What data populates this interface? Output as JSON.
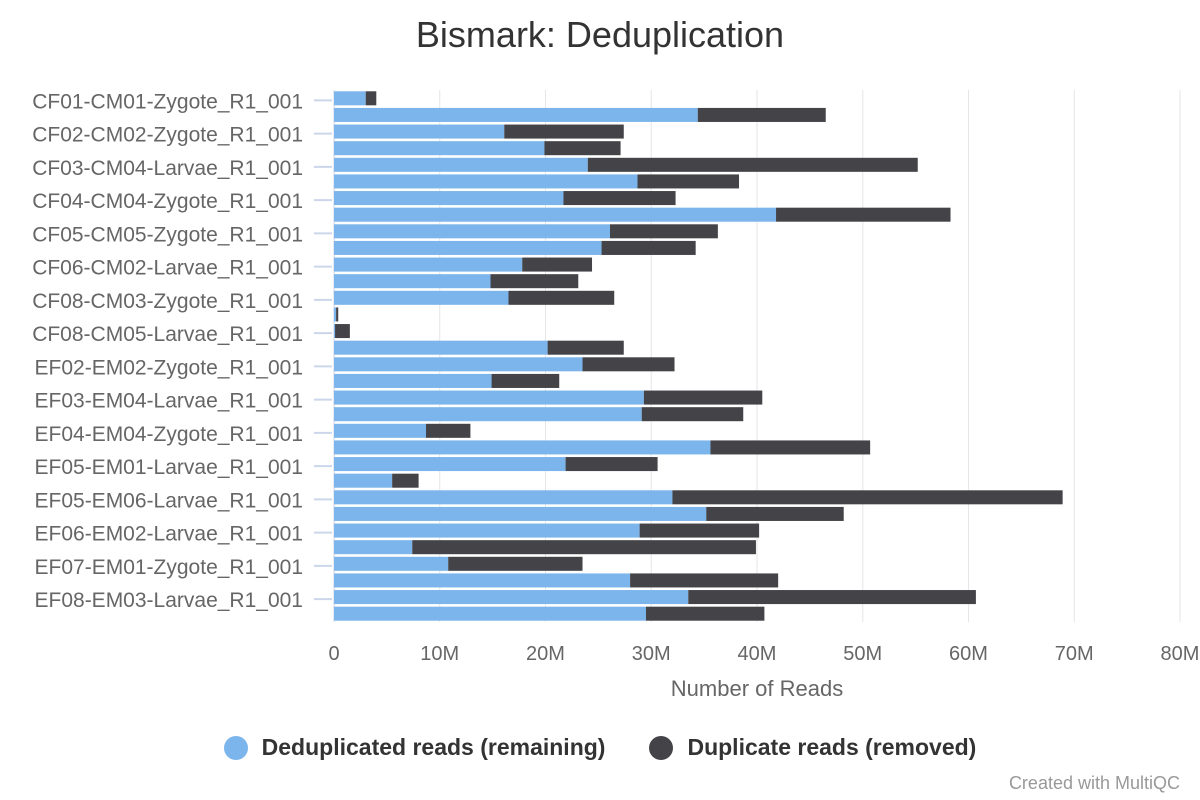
{
  "chart_data": {
    "type": "bar",
    "orientation": "horizontal",
    "stacked": true,
    "title": "Bismark: Deduplication",
    "xlabel": "Number of Reads",
    "ylabel": "",
    "xlim": [
      0,
      80000000
    ],
    "x_ticks": [
      "0",
      "10M",
      "20M",
      "30M",
      "40M",
      "50M",
      "60M",
      "70M",
      "80M"
    ],
    "grid": true,
    "legend_position": "bottom",
    "categories": [
      "CF01-CM01-Zygote_R1_001",
      "",
      "CF02-CM02-Zygote_R1_001",
      "",
      "CF03-CM04-Larvae_R1_001",
      "",
      "CF04-CM04-Zygote_R1_001",
      "",
      "CF05-CM05-Zygote_R1_001",
      "",
      "CF06-CM02-Larvae_R1_001",
      "",
      "CF08-CM03-Zygote_R1_001",
      "",
      "CF08-CM05-Larvae_R1_001",
      "",
      "EF02-EM02-Zygote_R1_001",
      "",
      "EF03-EM04-Larvae_R1_001",
      "",
      "EF04-EM04-Zygote_R1_001",
      "",
      "EF05-EM01-Larvae_R1_001",
      "",
      "EF05-EM06-Larvae_R1_001",
      "",
      "EF06-EM02-Larvae_R1_001",
      "",
      "EF07-EM01-Zygote_R1_001",
      "",
      "EF08-EM03-Larvae_R1_001",
      ""
    ],
    "series": [
      {
        "name": "Deduplicated reads (remaining)",
        "color": "#7cb5ec",
        "values": [
          3.0,
          34.4,
          16.1,
          19.9,
          24.0,
          28.7,
          21.7,
          41.8,
          26.1,
          25.3,
          17.8,
          14.8,
          16.5,
          0.2,
          0.1,
          20.2,
          23.5,
          14.9,
          29.3,
          29.1,
          8.7,
          35.6,
          21.9,
          5.5,
          32.0,
          35.2,
          28.9,
          7.4,
          10.8,
          28.0,
          33.5,
          29.5
        ]
      },
      {
        "name": "Duplicate reads (removed)",
        "color": "#434348",
        "values": [
          1.0,
          12.1,
          11.3,
          7.2,
          31.2,
          9.6,
          10.6,
          16.5,
          10.2,
          8.9,
          6.6,
          8.3,
          10.0,
          0.2,
          1.4,
          7.2,
          8.7,
          6.4,
          11.2,
          9.6,
          4.2,
          15.1,
          8.7,
          2.5,
          36.9,
          13.0,
          11.3,
          32.5,
          12.7,
          14.0,
          27.2,
          11.2
        ]
      }
    ],
    "value_unit": "millions of reads"
  },
  "credit": "Created with MultiQC"
}
